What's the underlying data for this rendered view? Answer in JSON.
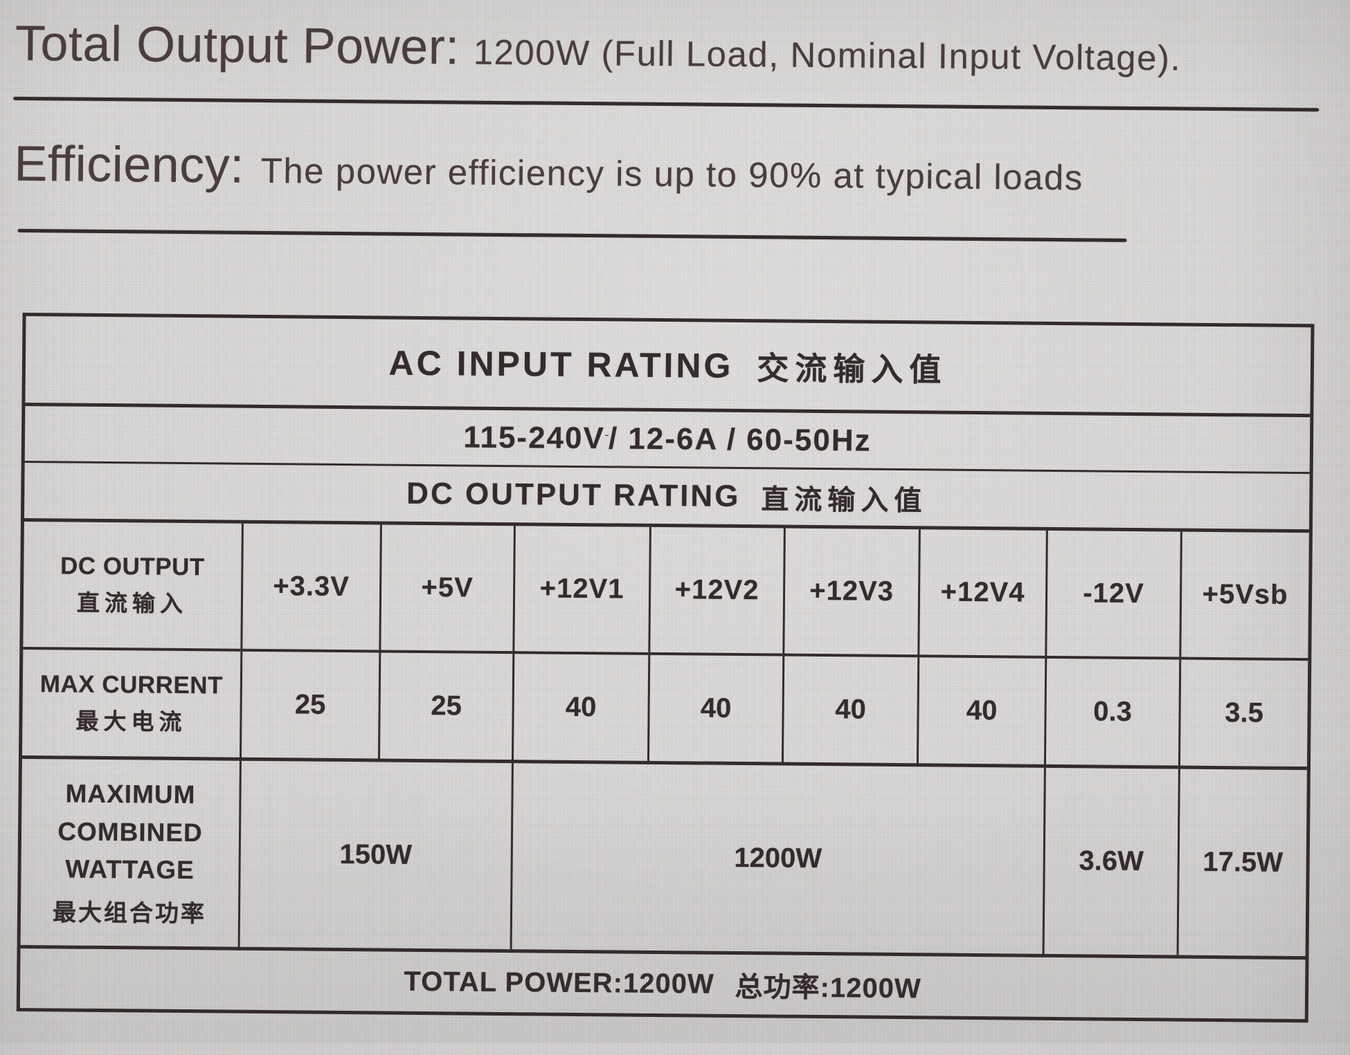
{
  "colors": {
    "paper": "#d6d5d3",
    "ink": "#332b2c",
    "rule": "#342c2c",
    "title_text": "#493e3c"
  },
  "header": {
    "total_output": {
      "label": "Total Output Power:",
      "value": "1200W (Full Load, Nominal Input Voltage)."
    },
    "efficiency": {
      "label": "Efficiency:",
      "value": "The power efficiency is up to 90% at typical loads"
    }
  },
  "table": {
    "ac_input_rating": {
      "title_en": "AC INPUT RATING",
      "title_zh": "交流输入值"
    },
    "ac_input_value": {
      "prefix": "115-240V",
      "tilde": "~",
      "suffix": "/ 12-6A / 60-50Hz"
    },
    "dc_output_rating": {
      "title_en": "DC OUTPUT RATING",
      "title_zh": "直流输入值"
    },
    "columns": {
      "label_en": "DC OUTPUT",
      "label_zh": "直流输入",
      "rails": [
        "+3.3V",
        "+5V",
        "+12V1",
        "+12V2",
        "+12V3",
        "+12V4",
        "-12V",
        "+5Vsb"
      ]
    },
    "max_current": {
      "label_en": "MAX CURRENT",
      "label_zh": "最大电流",
      "values": [
        "25",
        "25",
        "40",
        "40",
        "40",
        "40",
        "0.3",
        "3.5"
      ]
    },
    "combined_wattage": {
      "label_en_line1": "MAXIMUM",
      "label_en_line2": "COMBINED",
      "label_en_line3": "WATTAGE",
      "label_zh": "最大组合功率",
      "cells": [
        "150W",
        "1200W",
        "3.6W",
        "17.5W"
      ]
    },
    "total_power": {
      "text_en": "TOTAL POWER:1200W",
      "text_zh": "总功率:1200W"
    }
  }
}
